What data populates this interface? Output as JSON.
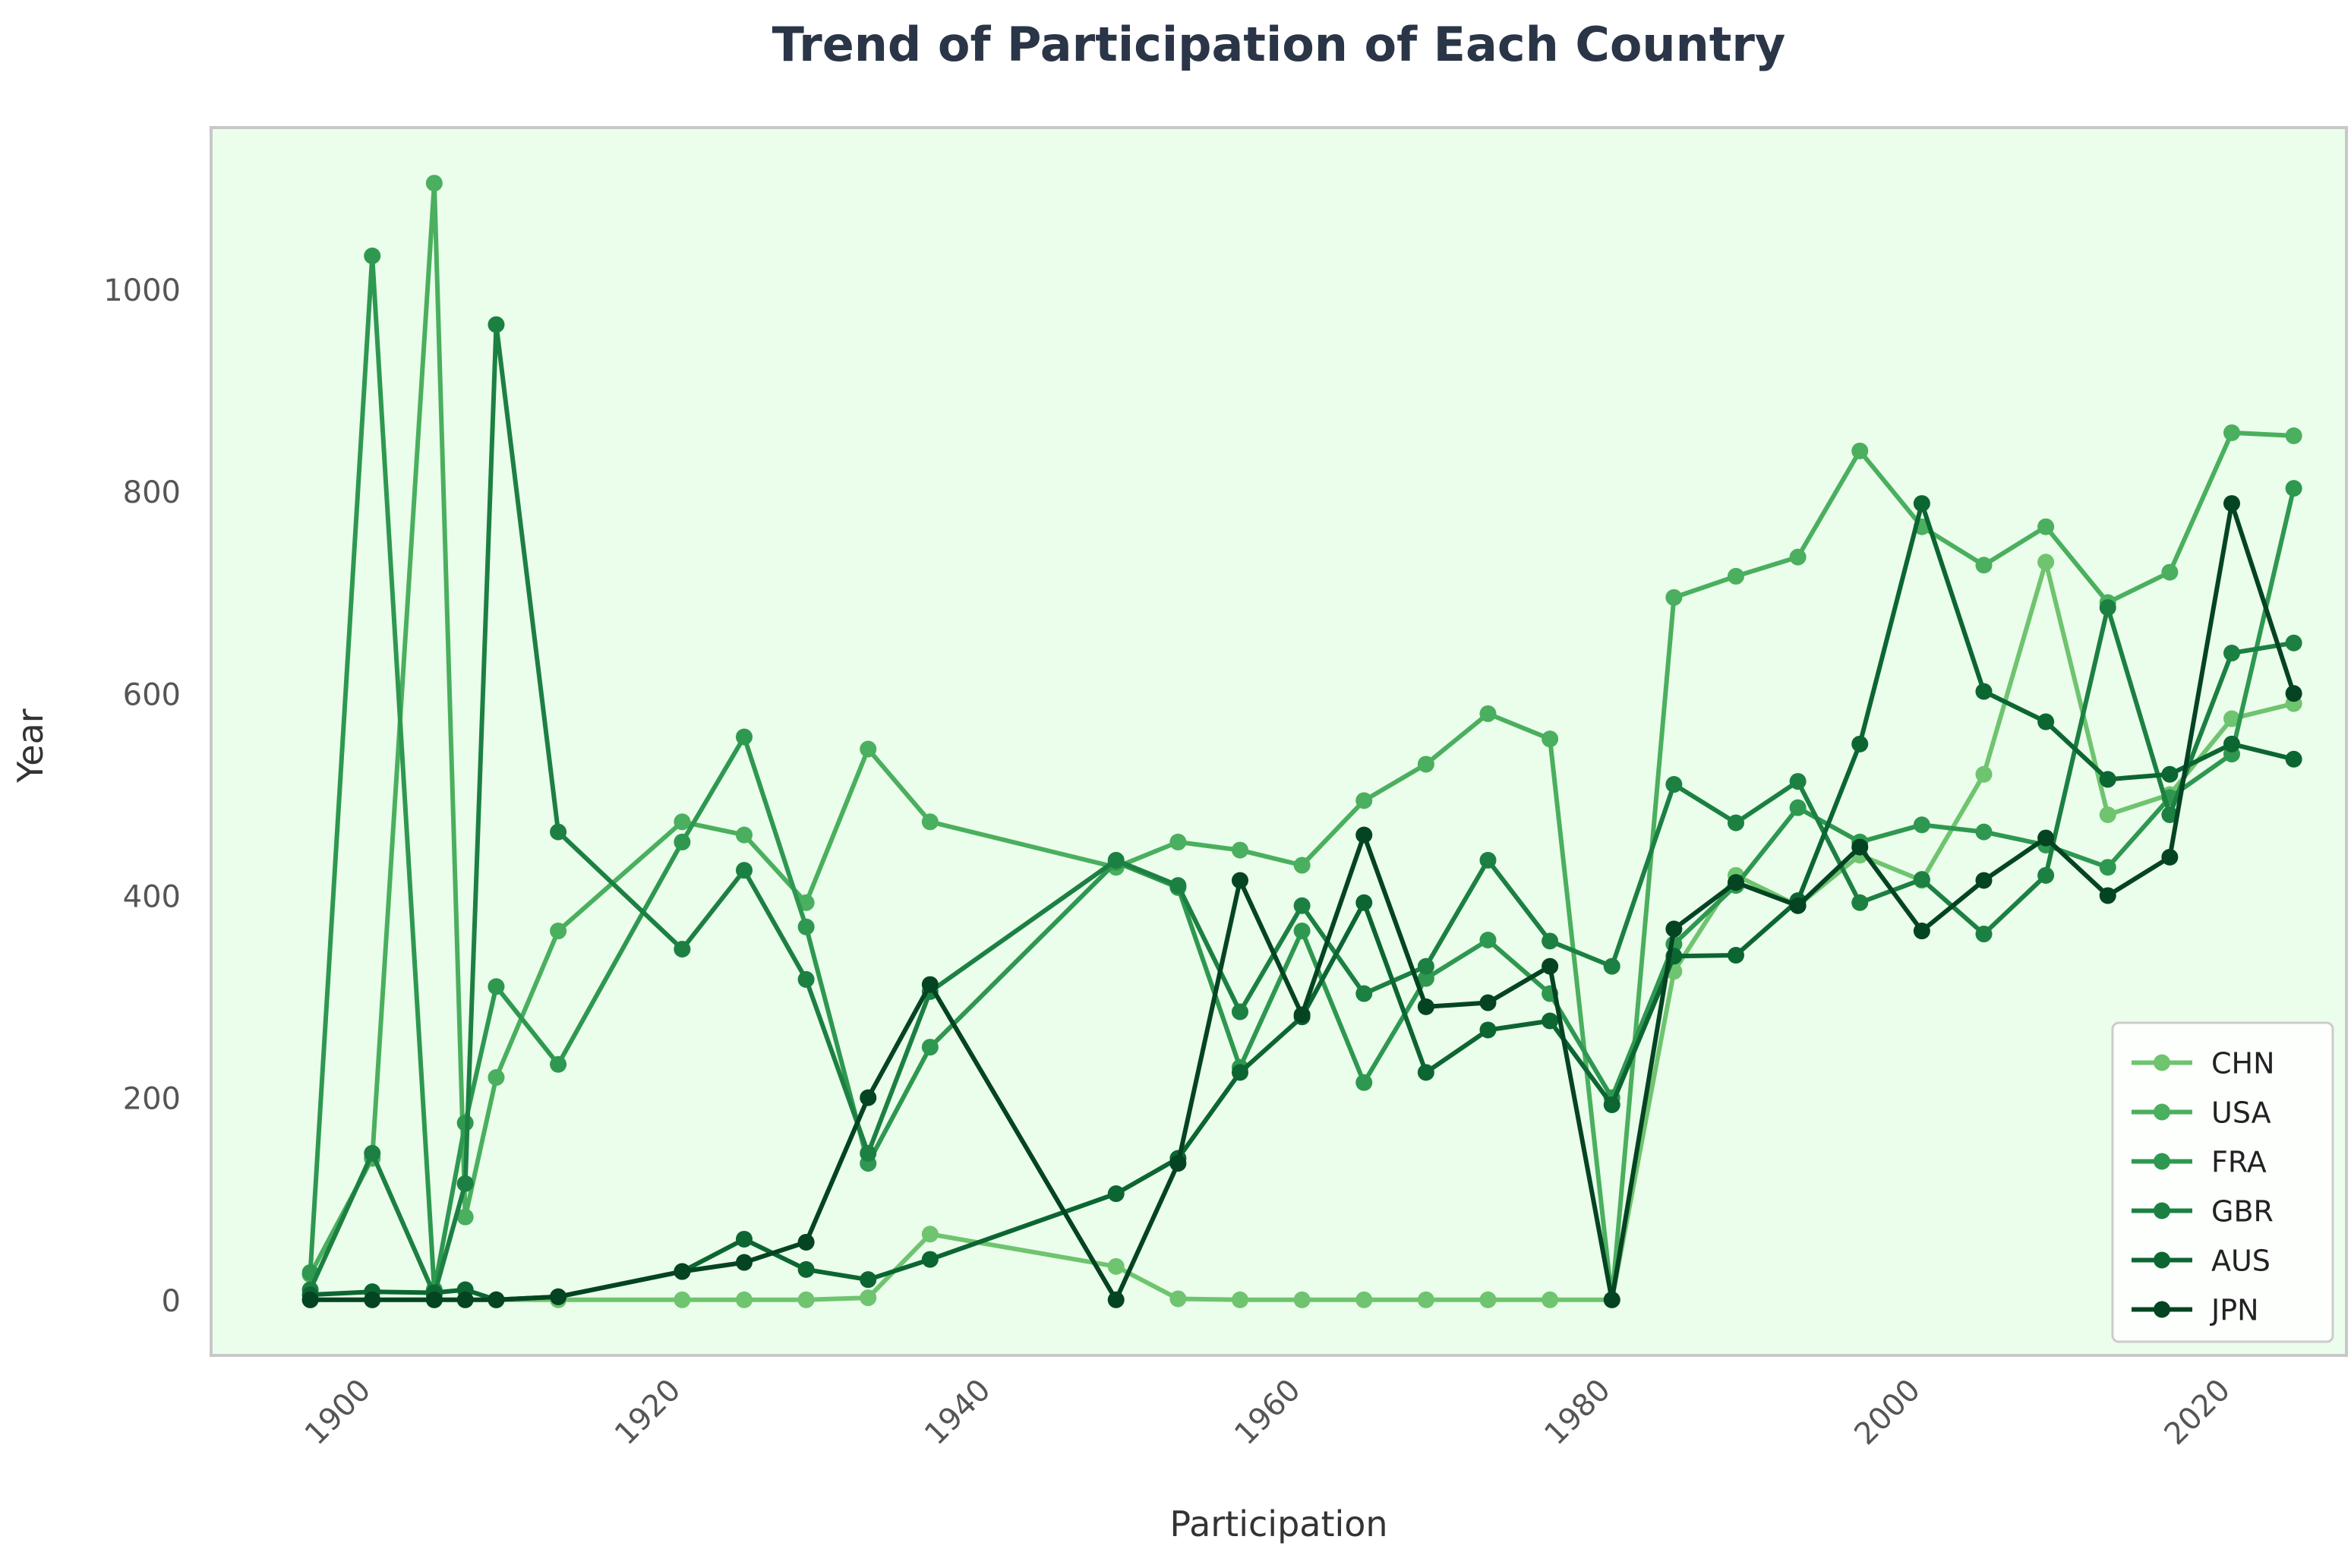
{
  "chart_data": {
    "type": "line",
    "title": "Trend of Participation of Each Country",
    "xlabel": "Participation",
    "ylabel": "Year",
    "xlim": [
      1889.6,
      2027.4
    ],
    "ylim": [
      -55,
      1160
    ],
    "xticks": [
      1900,
      1920,
      1940,
      1960,
      1980,
      2000,
      2020
    ],
    "yticks": [
      0,
      200,
      400,
      600,
      800,
      1000
    ],
    "grid": false,
    "legend_position": "lower-right",
    "background_color": "#ebfdeb",
    "x": [
      1896,
      1900,
      1904,
      1906,
      1908,
      1912,
      1920,
      1924,
      1928,
      1932,
      1936,
      1948,
      1952,
      1956,
      1960,
      1964,
      1968,
      1972,
      1976,
      1980,
      1984,
      1988,
      1992,
      1996,
      2000,
      2004,
      2008,
      2012,
      2016,
      2020,
      2024
    ],
    "series": [
      {
        "name": "CHN",
        "color": "#6fc46f",
        "values": [
          0,
          0,
          0,
          0,
          0,
          0,
          0,
          0,
          0,
          2,
          65,
          33,
          1,
          0,
          0,
          0,
          0,
          0,
          0,
          0,
          325,
          420,
          390,
          440,
          415,
          520,
          730,
          480,
          500,
          575,
          590
        ]
      },
      {
        "name": "USA",
        "color": "#4aaf5e",
        "values": [
          25,
          140,
          1105,
          82,
          220,
          365,
          473,
          460,
          393,
          545,
          473,
          428,
          453,
          445,
          430,
          494,
          530,
          580,
          555,
          0,
          695,
          716,
          735,
          840,
          765,
          727,
          765,
          690,
          720,
          858,
          855
        ]
      },
      {
        "name": "FRA",
        "color": "#2e9850",
        "values": [
          27,
          1033,
          10,
          175,
          310,
          233,
          453,
          557,
          369,
          135,
          250,
          433,
          408,
          230,
          365,
          215,
          318,
          356,
          303,
          200,
          352,
          410,
          487,
          453,
          470,
          463,
          450,
          428,
          497,
          540,
          803
        ]
      },
      {
        "name": "GBR",
        "color": "#1c8042",
        "values": [
          10,
          145,
          5,
          115,
          965,
          463,
          347,
          425,
          317,
          145,
          305,
          435,
          410,
          285,
          390,
          303,
          330,
          435,
          355,
          330,
          510,
          472,
          513,
          393,
          416,
          362,
          420,
          685,
          480,
          640,
          650
        ]
      },
      {
        "name": "AUS",
        "color": "#0c6632",
        "values": [
          5,
          8,
          7,
          10,
          0,
          3,
          28,
          60,
          30,
          20,
          40,
          105,
          140,
          225,
          280,
          393,
          225,
          267,
          276,
          193,
          340,
          341,
          395,
          550,
          788,
          602,
          572,
          515,
          520,
          550,
          535
        ]
      },
      {
        "name": "JPN",
        "color": "#044422",
        "values": [
          0,
          0,
          0,
          0,
          0,
          3,
          28,
          37,
          57,
          200,
          312,
          0,
          135,
          415,
          282,
          460,
          290,
          294,
          330,
          0,
          367,
          413,
          390,
          448,
          365,
          415,
          457,
          400,
          438,
          788,
          600
        ]
      }
    ]
  }
}
